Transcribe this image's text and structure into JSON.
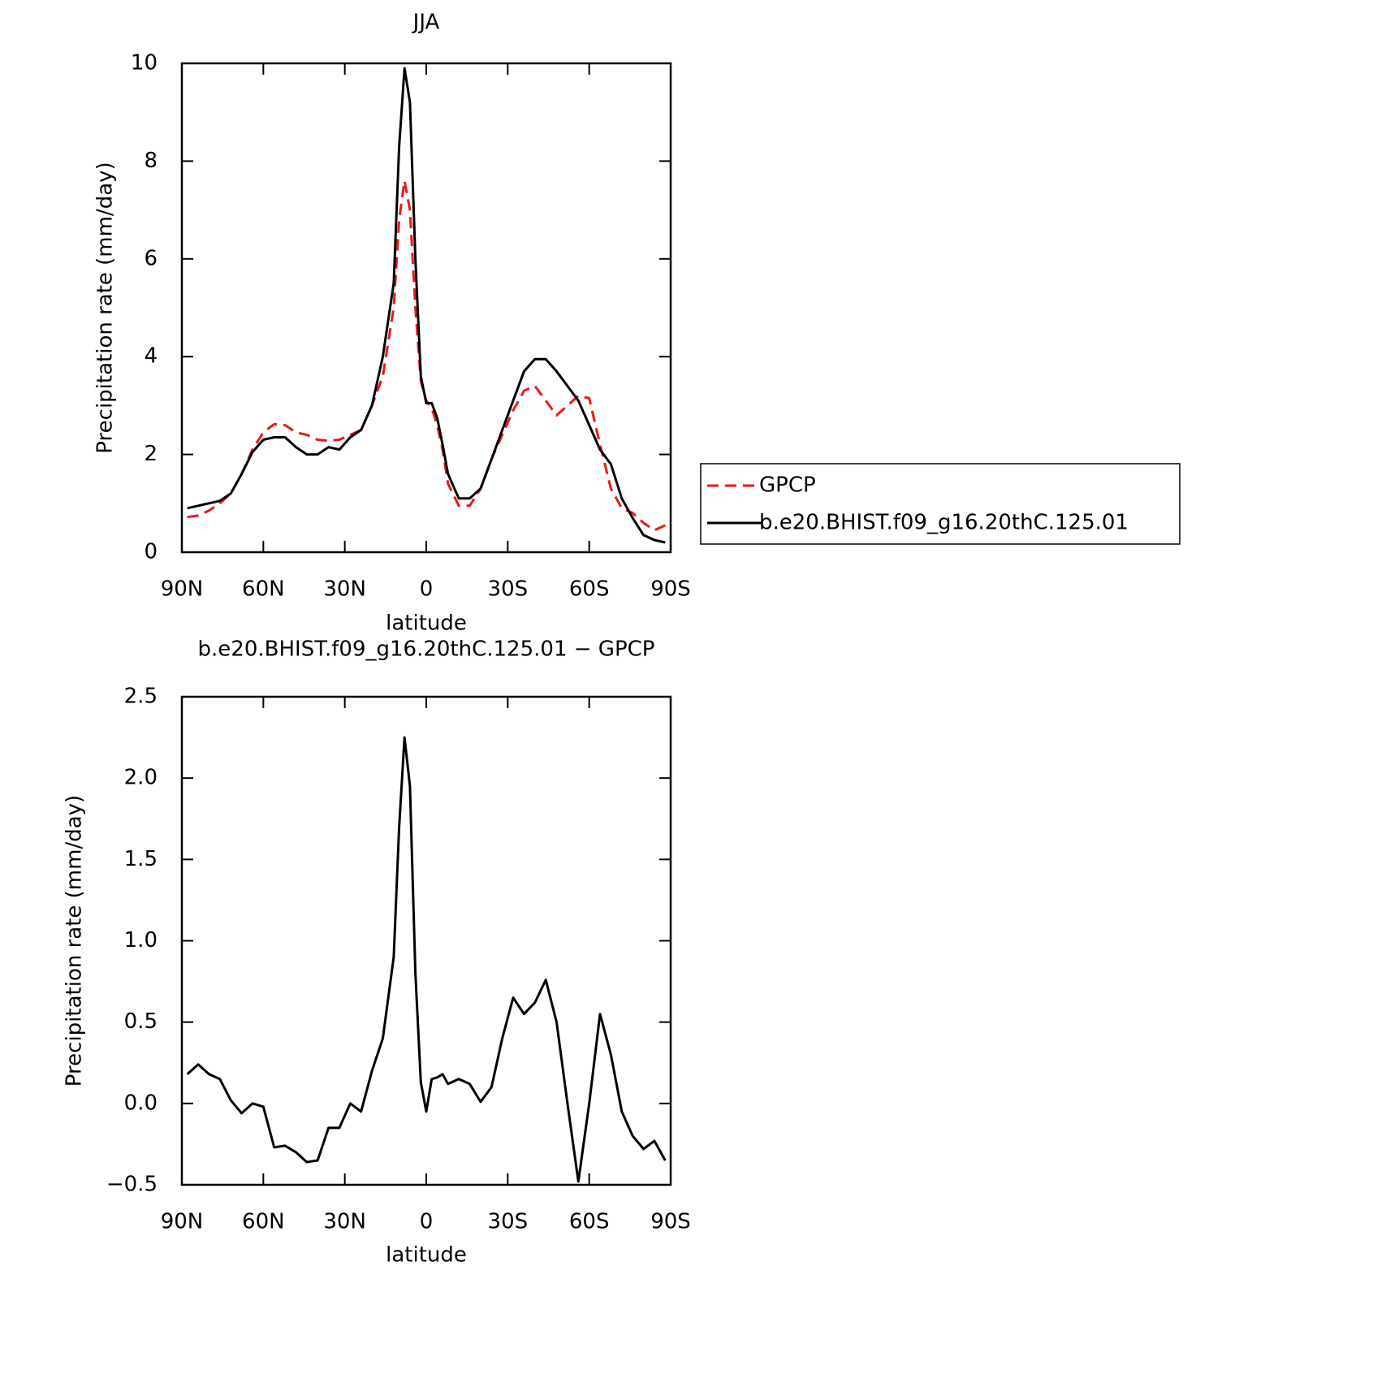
{
  "chart_data": [
    {
      "type": "line",
      "title": "JJA",
      "xlabel": "latitude",
      "ylabel": "Precipitation rate (mm/day)",
      "x": [
        88,
        84,
        80,
        76,
        72,
        68,
        64,
        60,
        56,
        52,
        48,
        44,
        40,
        36,
        32,
        28,
        24,
        20,
        16,
        12,
        10,
        8,
        6,
        4,
        2,
        0,
        -2,
        -4,
        -6,
        -8,
        -12,
        -16,
        -20,
        -24,
        -28,
        -32,
        -36,
        -40,
        -44,
        -48,
        -52,
        -56,
        -60,
        -64,
        -68,
        -72,
        -76,
        -80,
        -84,
        -88
      ],
      "xlim": [
        90,
        -90
      ],
      "xticks": [
        {
          "value": 90,
          "label": "90N"
        },
        {
          "value": 60,
          "label": "60N"
        },
        {
          "value": 30,
          "label": "30N"
        },
        0,
        {
          "value": -30,
          "label": "30S"
        },
        {
          "value": -60,
          "label": "60S"
        },
        {
          "value": -90,
          "label": "90S"
        }
      ],
      "ylim": [
        0,
        10
      ],
      "yticks": [
        0,
        2,
        4,
        6,
        8,
        10
      ],
      "legend": "right",
      "series": [
        {
          "name": "GPCP",
          "color": "#e8191b",
          "dashed": true,
          "values": [
            0.72,
            0.75,
            0.85,
            1.0,
            1.2,
            1.6,
            2.1,
            2.45,
            2.62,
            2.6,
            2.45,
            2.4,
            2.3,
            2.28,
            2.3,
            2.4,
            2.5,
            3.0,
            3.6,
            5.0,
            6.8,
            7.6,
            7.0,
            5.0,
            3.5,
            3.1,
            2.95,
            2.6,
            2.1,
            1.4,
            0.95,
            0.95,
            1.3,
            1.9,
            2.4,
            2.9,
            3.3,
            3.4,
            3.1,
            2.8,
            3.0,
            3.2,
            3.15,
            2.2,
            1.3,
            0.9,
            0.8,
            0.6,
            0.45,
            0.55
          ]
        },
        {
          "name": "b.e20.BHIST.f09_g16.20thC.125.01",
          "color": "#000000",
          "dashed": false,
          "values": [
            0.9,
            0.95,
            1.0,
            1.05,
            1.2,
            1.6,
            2.05,
            2.3,
            2.35,
            2.35,
            2.15,
            2.0,
            2.0,
            2.15,
            2.1,
            2.35,
            2.5,
            3.0,
            4.0,
            5.5,
            8.3,
            9.9,
            9.2,
            6.0,
            3.6,
            3.05,
            3.05,
            2.75,
            2.2,
            1.6,
            1.1,
            1.1,
            1.3,
            1.9,
            2.5,
            3.1,
            3.7,
            3.95,
            3.95,
            3.7,
            3.4,
            3.1,
            2.6,
            2.1,
            1.8,
            1.1,
            0.7,
            0.35,
            0.25,
            0.2
          ]
        }
      ]
    },
    {
      "type": "line",
      "title": "b.e20.BHIST.f09_g16.20thC.125.01 − GPCP",
      "xlabel": "latitude",
      "ylabel": "Precipitation rate (mm/day)",
      "x": [
        88,
        84,
        80,
        76,
        72,
        68,
        64,
        60,
        56,
        52,
        48,
        44,
        40,
        36,
        32,
        28,
        24,
        20,
        16,
        12,
        10,
        8,
        6,
        4,
        2,
        0,
        -2,
        -4,
        -6,
        -8,
        -12,
        -16,
        -20,
        -24,
        -28,
        -32,
        -36,
        -40,
        -44,
        -48,
        -52,
        -56,
        -60,
        -64,
        -68,
        -72,
        -76,
        -80,
        -84,
        -88
      ],
      "xlim": [
        90,
        -90
      ],
      "xticks": [
        {
          "value": 90,
          "label": "90N"
        },
        {
          "value": 60,
          "label": "60N"
        },
        {
          "value": 30,
          "label": "30N"
        },
        0,
        {
          "value": -30,
          "label": "30S"
        },
        {
          "value": -60,
          "label": "60S"
        },
        {
          "value": -90,
          "label": "90S"
        }
      ],
      "ylim": [
        -0.5,
        2.5
      ],
      "yticks": [
        {
          "value": -0.5,
          "label": "−0.5"
        },
        {
          "value": 0,
          "label": "0.0"
        },
        0.5,
        {
          "value": 1,
          "label": "1.0"
        },
        1.5,
        {
          "value": 2,
          "label": "2.0"
        },
        2.5
      ],
      "series": [
        {
          "color": "#000000",
          "dashed": false,
          "values": [
            0.18,
            0.24,
            0.18,
            0.15,
            0.02,
            -0.06,
            0.0,
            -0.02,
            -0.27,
            -0.26,
            -0.3,
            -0.36,
            -0.35,
            -0.15,
            -0.15,
            0.0,
            -0.05,
            0.2,
            0.4,
            0.9,
            1.7,
            2.25,
            1.95,
            0.8,
            0.13,
            -0.05,
            0.15,
            0.16,
            0.18,
            0.12,
            0.15,
            0.12,
            0.01,
            0.1,
            0.4,
            0.65,
            0.55,
            0.62,
            0.76,
            0.5,
            0.0,
            -0.48,
            0.0,
            0.55,
            0.3,
            -0.05,
            -0.2,
            -0.28,
            -0.23,
            -0.35
          ]
        }
      ]
    }
  ]
}
